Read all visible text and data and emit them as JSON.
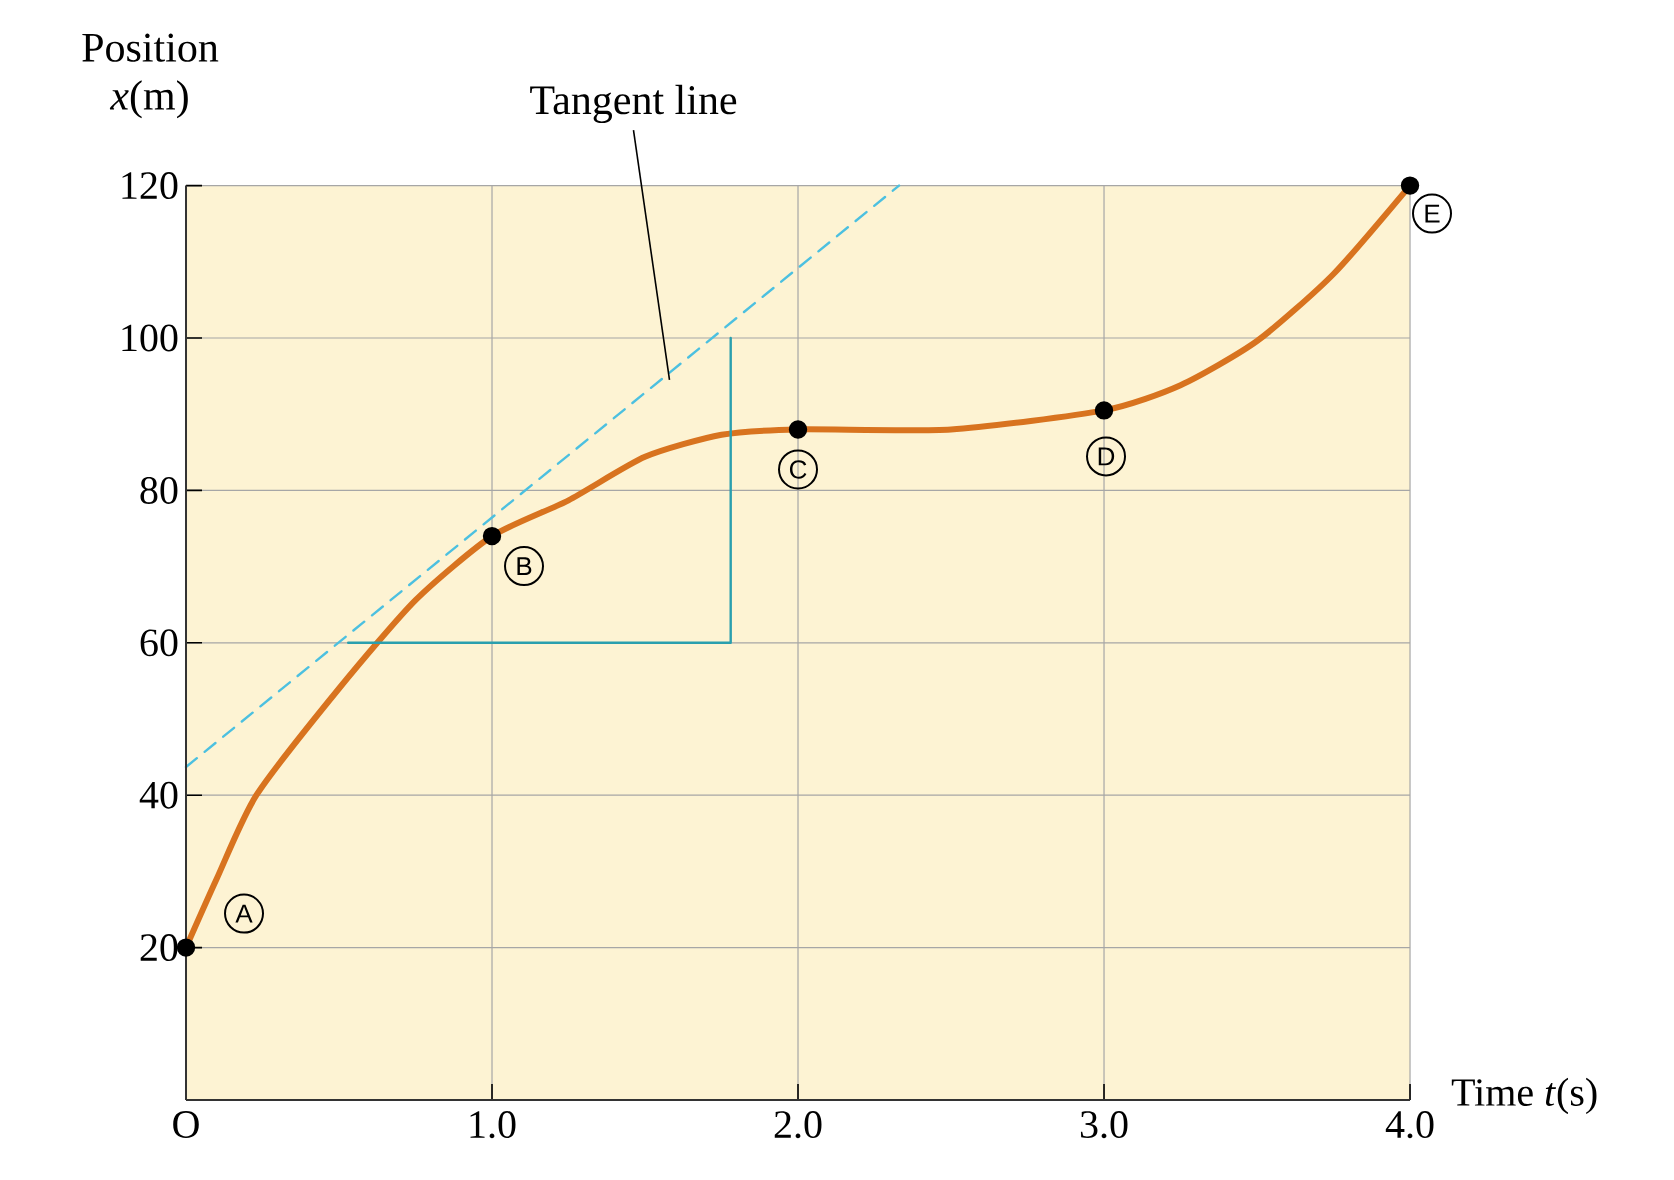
{
  "chart_data": {
    "type": "line",
    "xlabel": "Time *t*(s)",
    "ylabel": "Position *x*(m)",
    "xlim": [
      0,
      4.0
    ],
    "ylim": [
      0,
      120
    ],
    "xticks": [
      {
        "value": 0,
        "label": "O"
      },
      {
        "value": 1,
        "label": "1.0"
      },
      {
        "value": 2,
        "label": "2.0"
      },
      {
        "value": 3,
        "label": "3.0"
      },
      {
        "value": 4,
        "label": "4.0"
      }
    ],
    "yticks": [
      20,
      40,
      60,
      80,
      100,
      120
    ],
    "grid": true,
    "bands": [
      {
        "axis": "x",
        "from": 0,
        "to": 4,
        "color": "#fdf3d3"
      }
    ],
    "series": [
      {
        "color": "#d8731f",
        "marker": "none",
        "line_style": "solid",
        "x": [
          0,
          0.1,
          0.23,
          0.5,
          0.75,
          1,
          1.25,
          1.5,
          1.75,
          2,
          2.5,
          3,
          3.25,
          3.5,
          3.75,
          4
        ],
        "values": [
          20,
          29,
          40,
          54,
          65.6,
          74,
          78.7,
          84.4,
          87.3,
          88,
          88,
          90.5,
          93.8,
          99.6,
          108.4,
          120
        ]
      },
      {
        "type": "scatter",
        "color": "#000000",
        "marker": "circle",
        "x": [
          0,
          1,
          2,
          3,
          4
        ],
        "values": [
          20,
          74,
          88,
          90.5,
          120
        ]
      },
      {
        "color": "#4cc0e0",
        "marker": "none",
        "line_style": "dashed",
        "x": [
          0,
          2.33
        ],
        "values": [
          43.7,
          120
        ]
      },
      {
        "color": "#2a9fae",
        "marker": "none",
        "line_style": "solid",
        "x": [
          0.53,
          1.78,
          1.78
        ],
        "values": [
          60,
          60,
          100
        ]
      }
    ],
    "annotations": [
      {
        "text": "Tangent line",
        "x": 1.58,
        "y": 94.5
      },
      {
        "text": "A",
        "x": 0,
        "y": 20
      },
      {
        "text": "B",
        "x": 1,
        "y": 74
      },
      {
        "text": "C",
        "x": 2,
        "y": 88
      },
      {
        "text": "D",
        "x": 3,
        "y": 90.5
      },
      {
        "text": "E",
        "x": 4,
        "y": 120
      }
    ]
  }
}
